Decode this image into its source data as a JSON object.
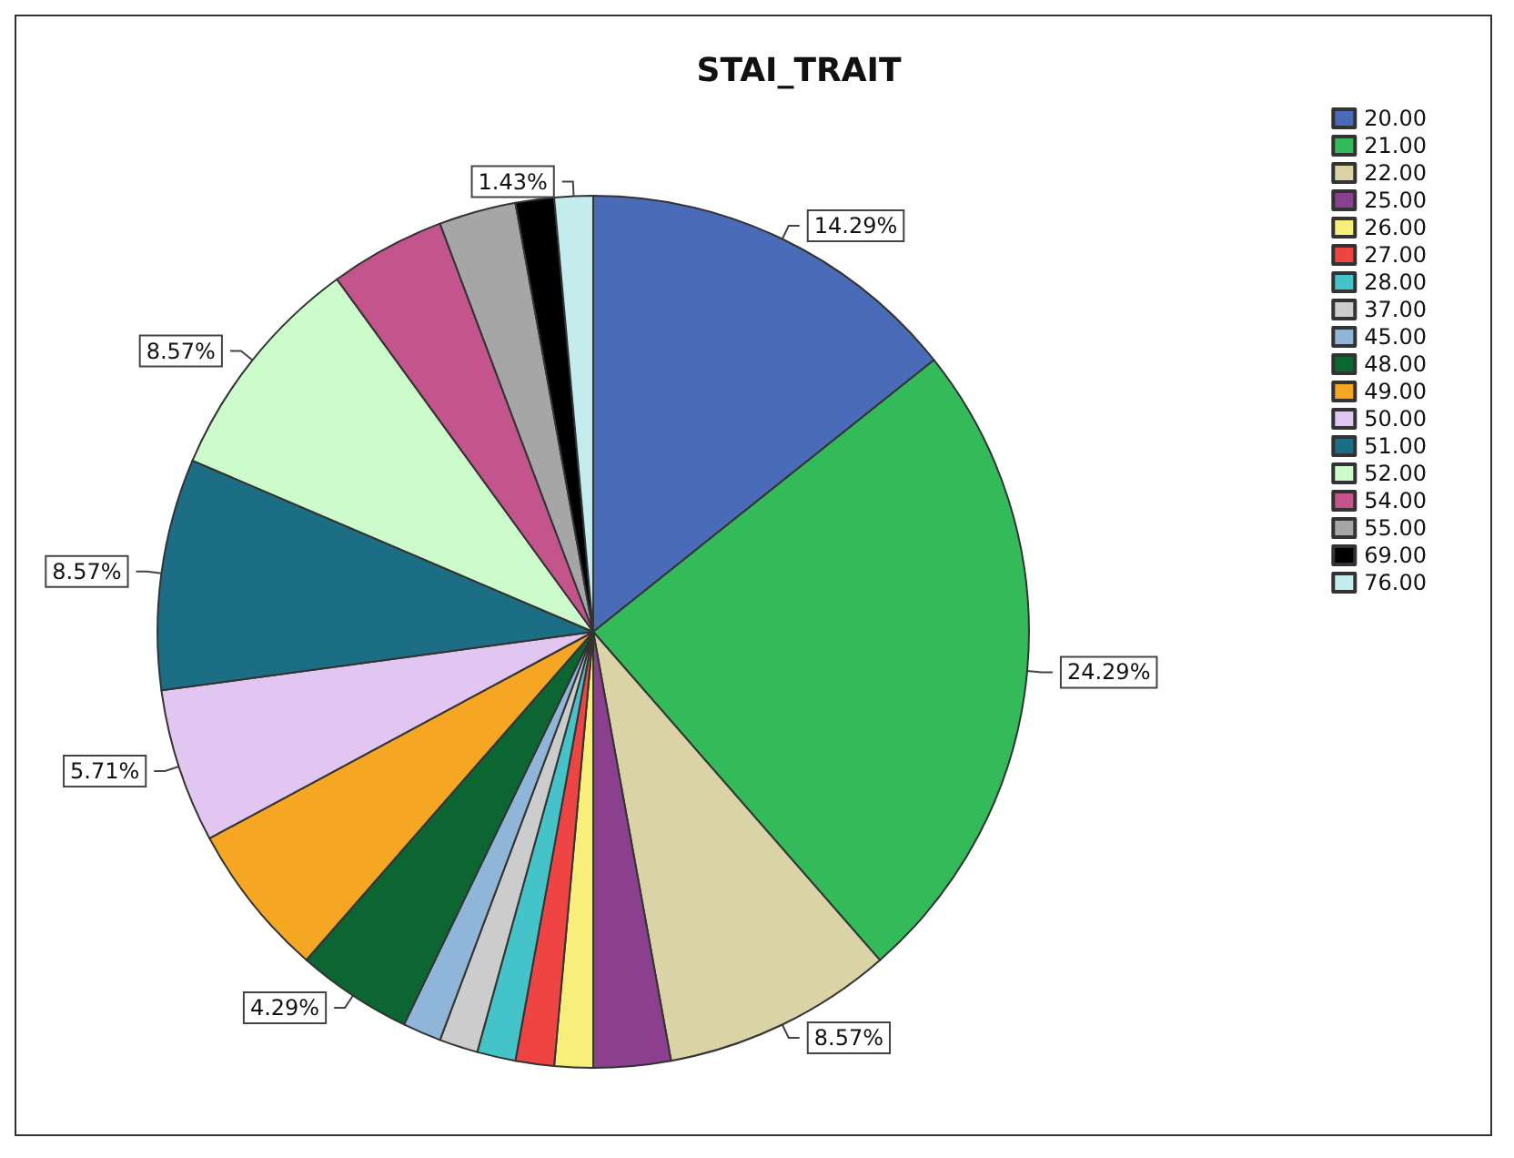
{
  "chart_data": {
    "type": "pie",
    "title": "STAI_TRAIT",
    "categories": [
      "20.00",
      "21.00",
      "22.00",
      "25.00",
      "26.00",
      "27.00",
      "28.00",
      "37.00",
      "45.00",
      "48.00",
      "49.00",
      "50.00",
      "51.00",
      "52.00",
      "54.00",
      "55.00",
      "69.00",
      "76.00"
    ],
    "values": [
      14.29,
      24.29,
      8.57,
      2.86,
      1.43,
      1.43,
      1.43,
      1.43,
      1.43,
      4.29,
      5.71,
      5.71,
      8.57,
      8.57,
      4.29,
      2.86,
      1.43,
      1.43
    ],
    "colors": [
      "#4a6bb8",
      "#33bb5a",
      "#d9d3a6",
      "#8a3f8f",
      "#f7ef7a",
      "#ee4444",
      "#44c4c8",
      "#cccccc",
      "#8fb5d9",
      "#0c6632",
      "#f5a623",
      "#e0c6f0",
      "#1c6e85",
      "#ccfccc",
      "#c4548c",
      "#a6a6a6",
      "#000000",
      "#c4ecec"
    ],
    "value_labels": [
      "14.29%",
      "24.29%",
      "8.57%",
      null,
      null,
      null,
      null,
      null,
      null,
      "4.29%",
      null,
      "5.71%",
      "8.57%",
      "8.57%",
      null,
      null,
      null,
      "1.43%"
    ],
    "legend": "top right"
  }
}
